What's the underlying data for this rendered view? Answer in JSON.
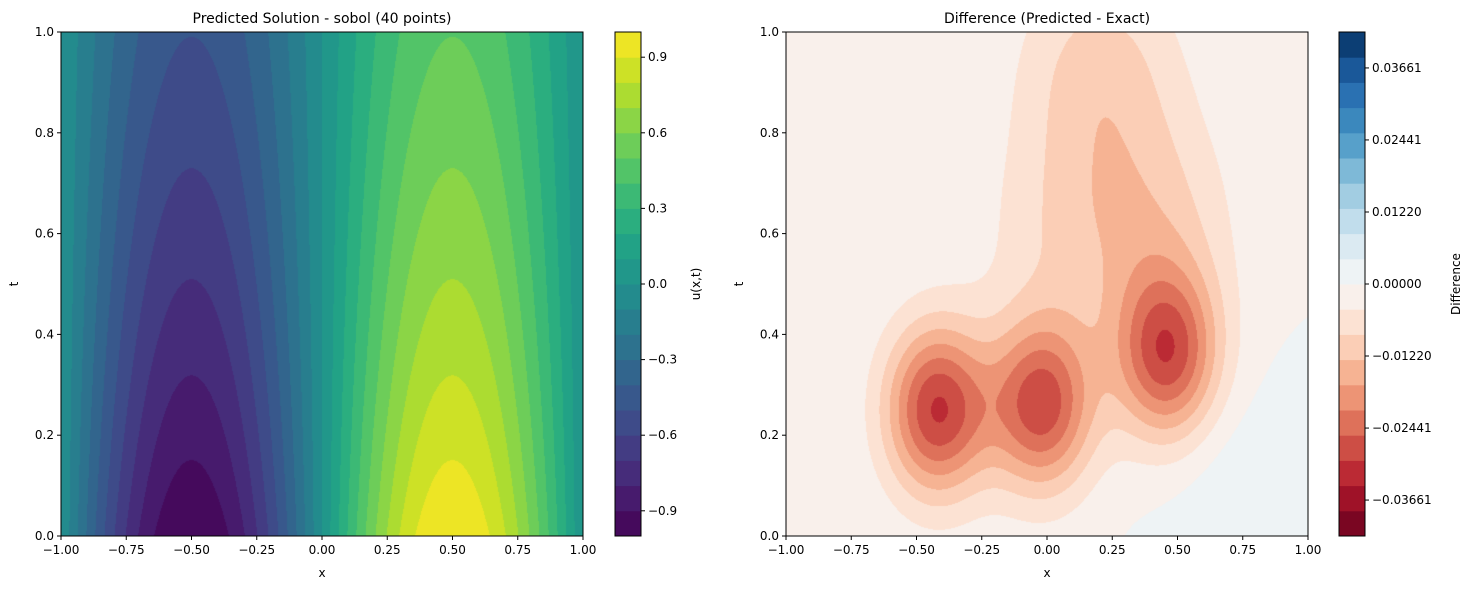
{
  "chart_data": [
    {
      "type": "contourf",
      "title": "Predicted Solution - sobol (40 points)",
      "xlabel": "x",
      "ylabel": "t",
      "xlim": [
        -1.0,
        1.0
      ],
      "ylim": [
        0.0,
        1.0
      ],
      "x_ticks": [
        -1.0,
        -0.75,
        -0.5,
        -0.25,
        0.0,
        0.25,
        0.5,
        0.75,
        1.0
      ],
      "x_tick_labels": [
        "−1.00",
        "−0.75",
        "−0.50",
        "−0.25",
        "0.00",
        "0.25",
        "0.50",
        "0.75",
        "1.00"
      ],
      "y_ticks": [
        0.0,
        0.2,
        0.4,
        0.6,
        0.8,
        1.0
      ],
      "y_tick_labels": [
        "0.0",
        "0.2",
        "0.4",
        "0.6",
        "0.8",
        "1.0"
      ],
      "colormap": "viridis",
      "colorbar": {
        "label": "u(x,t)",
        "vmin": -1.0,
        "vmax": 1.0,
        "levels": 20,
        "ticks": [
          -0.9,
          -0.6,
          -0.3,
          0.0,
          0.3,
          0.6,
          0.9
        ],
        "tick_labels": [
          "−0.9",
          "−0.6",
          "−0.3",
          "0.0",
          "0.3",
          "0.6",
          "0.9"
        ]
      },
      "field_description": "u = sin(pi x) * exp(-0.7 t) approx; minimum at (x=-0.5,t=0), maximum at (x=0.5,t=0)"
    },
    {
      "type": "contourf",
      "title": "Difference (Predicted - Exact)",
      "xlabel": "x",
      "ylabel": "t",
      "xlim": [
        -1.0,
        1.0
      ],
      "ylim": [
        0.0,
        1.0
      ],
      "x_ticks": [
        -1.0,
        -0.75,
        -0.5,
        -0.25,
        0.0,
        0.25,
        0.5,
        0.75,
        1.0
      ],
      "x_tick_labels": [
        "−1.00",
        "−0.75",
        "−0.50",
        "−0.25",
        "0.00",
        "0.25",
        "0.50",
        "0.75",
        "1.00"
      ],
      "y_ticks": [
        0.0,
        0.2,
        0.4,
        0.6,
        0.8,
        1.0
      ],
      "y_tick_labels": [
        "0.0",
        "0.2",
        "0.4",
        "0.6",
        "0.8",
        "1.0"
      ],
      "colormap": "RdBu",
      "colorbar": {
        "label": "Difference",
        "vmin": -0.0427,
        "vmax": 0.0427,
        "levels": 20,
        "ticks": [
          -0.03661,
          -0.02441,
          -0.0122,
          0.0,
          0.0122,
          0.02441,
          0.03661
        ],
        "tick_labels": [
          "−0.03661",
          "−0.02441",
          "−0.01220",
          "0.00000",
          "0.01220",
          "0.02441",
          "0.03661"
        ]
      },
      "blobs": [
        {
          "x": -0.42,
          "t": 0.25,
          "amp": -0.03
        },
        {
          "x": -0.02,
          "t": 0.26,
          "amp": -0.028
        },
        {
          "x": 0.46,
          "t": 0.36,
          "amp": -0.028
        },
        {
          "x": 0.4,
          "t": 0.62,
          "amp": -0.009
        },
        {
          "x": 0.05,
          "t": 0.6,
          "amp": -0.006
        },
        {
          "x": 0.2,
          "t": 0.92,
          "amp": -0.01
        },
        {
          "x": 0.77,
          "t": 0.05,
          "amp": 0.004
        }
      ]
    }
  ]
}
